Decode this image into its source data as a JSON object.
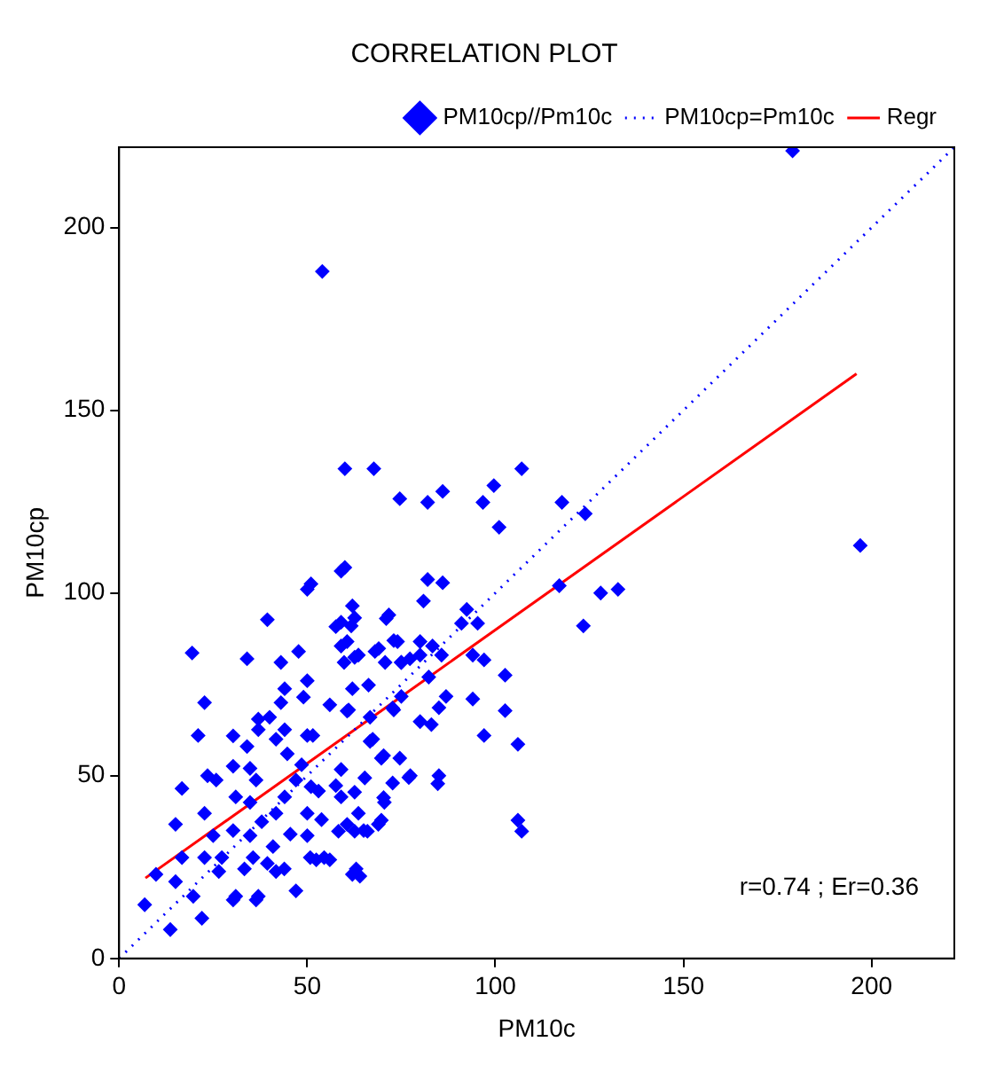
{
  "chart_data": {
    "type": "scatter",
    "title": "CORRELATION PLOT",
    "xlabel": "PM10c",
    "ylabel": "PM10cp",
    "xlim": [
      0,
      222
    ],
    "ylim": [
      0,
      222
    ],
    "xticks": [
      0,
      50,
      100,
      150,
      200
    ],
    "yticks": [
      0,
      50,
      100,
      150,
      200
    ],
    "grid": false,
    "legend": "top right",
    "annotations": [
      "r=0.74 ; Er=0.36"
    ],
    "series": [
      {
        "name": "PM10cp//Pm10c",
        "type": "scatter",
        "color": "#0000ff",
        "marker": "diamond",
        "x": [
          6.8,
          13.6,
          22,
          15,
          19.7,
          9.8,
          16.7,
          15,
          16.7,
          21,
          22.7,
          19.4,
          23.5,
          25.8,
          22.7,
          25,
          27.3,
          26.5,
          31,
          36.4,
          30.3,
          30.3,
          31,
          34.8,
          34.8,
          34.8,
          35.6,
          37.9,
          34,
          37,
          40,
          43,
          44,
          41.7,
          44.7,
          48.5,
          50,
          51.5,
          47,
          44,
          41.7,
          40.9,
          43.9,
          41.7,
          47,
          50,
          50.8,
          54.5,
          53.8,
          53,
          57.6,
          59,
          60.6,
          63.6,
          65,
          68.9,
          70.5,
          72.7,
          77,
          69.7,
          66.7,
          72.7,
          77.3,
          75,
          80,
          74,
          68,
          63.6,
          59.8,
          60.6,
          59,
          62,
          71,
          57.6,
          59,
          50,
          39.4,
          34,
          43,
          47.7,
          50,
          49,
          44,
          37,
          62,
          60.6,
          66.7,
          63,
          62,
          30.3,
          37,
          22.7,
          33.3,
          39.4,
          45.5,
          50,
          36.4,
          30.3,
          74.6,
          82,
          86,
          96.7,
          99.6,
          101,
          117.7,
          123.9,
          132.6,
          128,
          123.4,
          117,
          60,
          51,
          82,
          86,
          80.9,
          91,
          95.3,
          92.4,
          71.7,
          61.7,
          59,
          62.6,
          69,
          73,
          70.7,
          75,
          80,
          83.3,
          85.7,
          82.3,
          94,
          97,
          102.6,
          102.6,
          97,
          94,
          86.9,
          85,
          80,
          83,
          73,
          75,
          61,
          66.3,
          62.6,
          56,
          67.4,
          70.3,
          74.6,
          77.4,
          85,
          84.7,
          70.3,
          69.7,
          66,
          62.6,
          58.3,
          64,
          56,
          52.4,
          65.3,
          62.6,
          59,
          106,
          106,
          107,
          51,
          54,
          179,
          197,
          60,
          67.7,
          107
        ],
        "values": [
          14.7,
          7.9,
          11,
          21,
          17,
          23,
          27.6,
          36.7,
          46.5,
          61,
          70,
          83.6,
          50,
          48.8,
          39.7,
          33.6,
          27.6,
          23.8,
          17,
          16,
          35,
          52.6,
          44.2,
          52,
          42.7,
          33.6,
          27.6,
          37.4,
          58,
          65.5,
          66,
          70,
          62.6,
          60,
          56,
          53,
          61,
          61,
          48.8,
          44.2,
          39.7,
          30.6,
          24.5,
          23.8,
          18.5,
          33.6,
          27.6,
          27.6,
          38,
          45.8,
          47.3,
          44.2,
          36.7,
          39.7,
          35,
          36.7,
          42.7,
          48,
          49.5,
          54.8,
          59.4,
          68.5,
          82,
          81,
          86.7,
          86.7,
          84,
          83,
          81,
          86.7,
          92,
          96.5,
          93,
          90.8,
          106,
          101,
          92.7,
          82,
          81,
          84,
          76,
          71.5,
          73.8,
          62.6,
          73.8,
          67.7,
          66,
          24.5,
          23,
          16,
          17,
          27.6,
          24.5,
          26,
          34,
          39.7,
          48.8,
          60.9,
          125.8,
          124.8,
          127.8,
          124.8,
          129.4,
          118,
          124.8,
          121.7,
          101,
          100,
          91,
          102,
          107,
          102.5,
          103.7,
          102.8,
          97.8,
          91.7,
          91.7,
          95.5,
          94,
          91,
          85.5,
          93.2,
          84.8,
          87,
          81,
          81,
          83,
          85.5,
          83,
          77,
          83,
          81.7,
          77.5,
          67.8,
          61,
          71,
          71.7,
          68.6,
          64.8,
          64,
          68,
          71.7,
          68,
          74.8,
          82.4,
          69.4,
          60,
          55.5,
          54.8,
          50,
          50,
          47.8,
          44,
          37.8,
          34.8,
          34.8,
          34.8,
          22.5,
          27,
          27,
          49.4,
          45.5,
          51.7,
          58.6,
          37.8,
          34.8,
          47,
          188,
          221,
          113,
          134,
          134,
          134
        ]
      },
      {
        "name": "PM10cp=Pm10c",
        "type": "line",
        "color": "#0000ff",
        "marker": "none",
        "line_style": "dotted",
        "x": [
          0,
          222
        ],
        "values": [
          0,
          222
        ]
      },
      {
        "name": "Regr",
        "type": "line",
        "color": "#ff0000",
        "marker": "none",
        "line_style": "solid",
        "x": [
          7,
          196
        ],
        "values": [
          22,
          160
        ]
      }
    ]
  }
}
